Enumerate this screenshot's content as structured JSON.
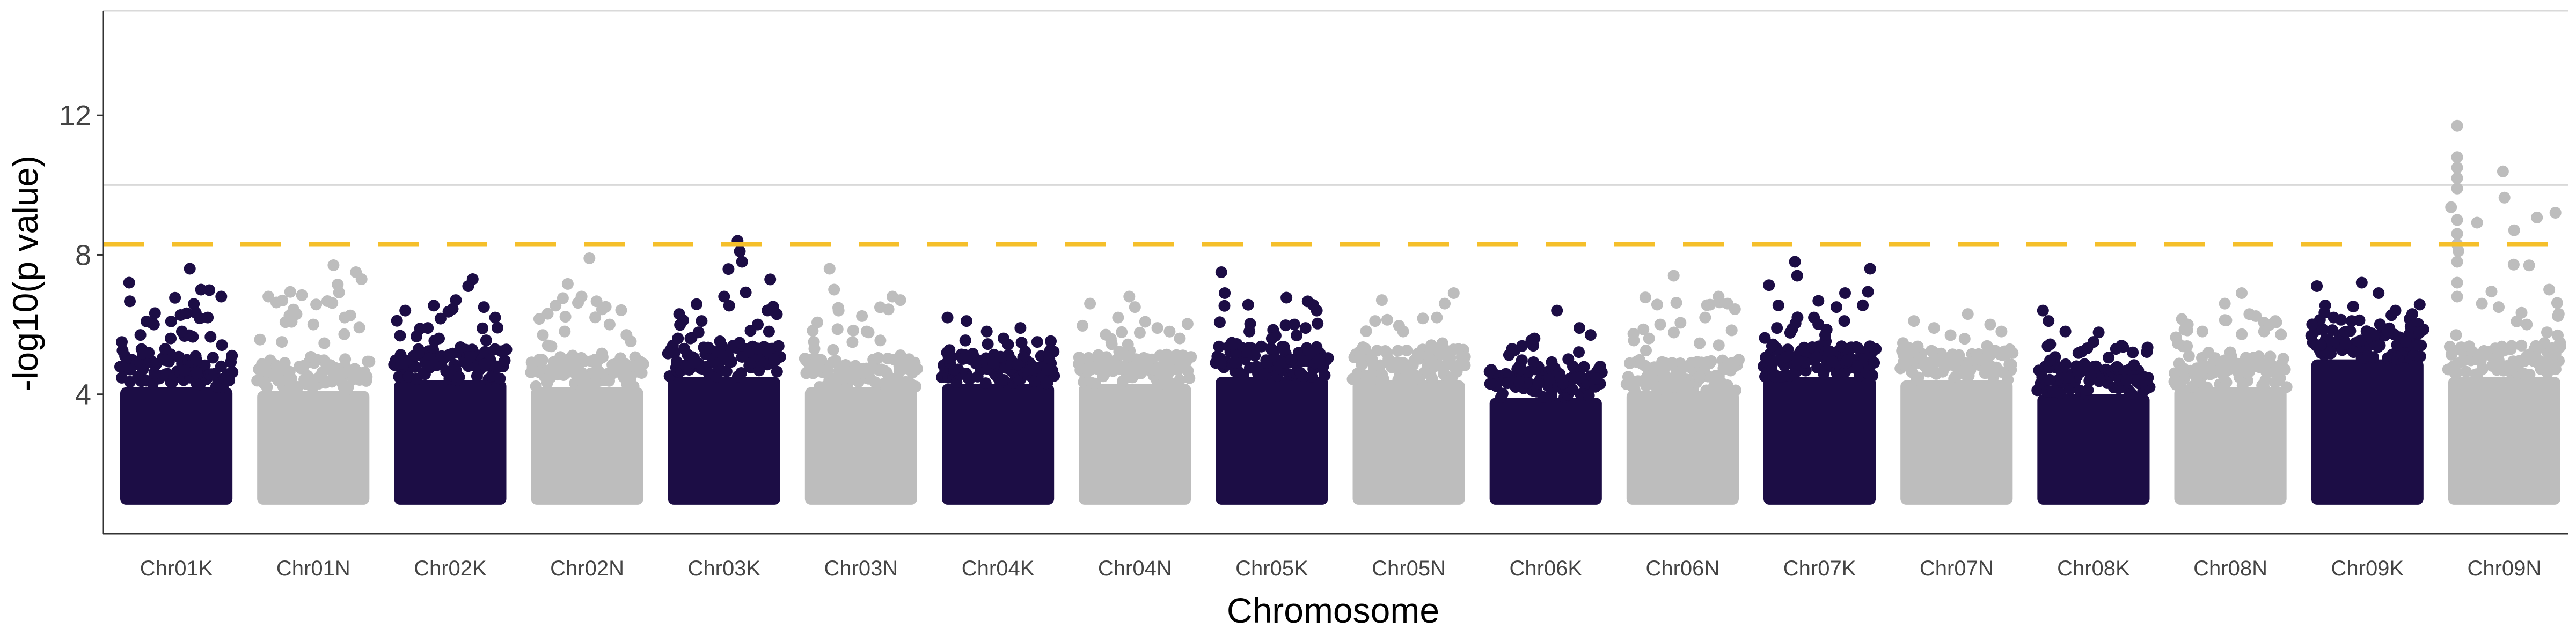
{
  "chart_data": {
    "type": "scatter",
    "subtype": "manhattan",
    "xlabel": "Chromosome",
    "ylabel": "-log10(p value)",
    "ylim": [
      0,
      15
    ],
    "y_ticks": [
      4,
      8,
      12
    ],
    "grid": {
      "major_y": [
        10,
        15
      ],
      "vertical": false
    },
    "significance_threshold": {
      "value": 8.3,
      "style": "dashed",
      "color": "#f5bf2a"
    },
    "colors": {
      "dark": "#1c0d45",
      "light": "#bdbdbd"
    },
    "chromosomes": [
      {
        "name": "Chr01K",
        "color": "dark",
        "bulk_top": 4.6,
        "scatter_max": 7.6,
        "peaks": [
          [
            0.08,
            7.2
          ],
          [
            0.62,
            7.6
          ],
          [
            0.72,
            7.0
          ],
          [
            0.9,
            6.8
          ],
          [
            0.3,
            6.0
          ],
          [
            0.45,
            5.6
          ],
          [
            0.55,
            5.8
          ],
          [
            0.78,
            6.2
          ],
          [
            0.18,
            5.7
          ],
          [
            0.4,
            5.3
          ]
        ]
      },
      {
        "name": "Chr01N",
        "color": "light",
        "bulk_top": 4.5,
        "scatter_max": 7.8,
        "peaks": [
          [
            0.1,
            6.8
          ],
          [
            0.35,
            6.3
          ],
          [
            0.68,
            7.7
          ],
          [
            0.88,
            7.5
          ],
          [
            0.93,
            7.3
          ],
          [
            0.5,
            6.0
          ],
          [
            0.22,
            5.5
          ],
          [
            0.78,
            6.2
          ]
        ]
      },
      {
        "name": "Chr02K",
        "color": "dark",
        "bulk_top": 4.8,
        "scatter_max": 7.3,
        "peaks": [
          [
            0.1,
            6.4
          ],
          [
            0.3,
            5.9
          ],
          [
            0.55,
            6.7
          ],
          [
            0.66,
            7.1
          ],
          [
            0.7,
            7.3
          ],
          [
            0.8,
            6.5
          ],
          [
            0.9,
            6.2
          ],
          [
            0.4,
            5.6
          ]
        ]
      },
      {
        "name": "Chr02N",
        "color": "light",
        "bulk_top": 4.6,
        "scatter_max": 7.9,
        "peaks": [
          [
            0.15,
            5.4
          ],
          [
            0.3,
            5.8
          ],
          [
            0.45,
            6.8
          ],
          [
            0.52,
            7.9
          ],
          [
            0.7,
            6.0
          ],
          [
            0.85,
            5.7
          ]
        ]
      },
      {
        "name": "Chr03K",
        "color": "dark",
        "bulk_top": 4.9,
        "scatter_max": 8.4,
        "peaks": [
          [
            0.1,
            6.3
          ],
          [
            0.3,
            6.1
          ],
          [
            0.5,
            6.8
          ],
          [
            0.62,
            8.4
          ],
          [
            0.64,
            8.1
          ],
          [
            0.66,
            7.8
          ],
          [
            0.8,
            6.0
          ],
          [
            0.9,
            5.8
          ],
          [
            0.2,
            5.6
          ]
        ]
      },
      {
        "name": "Chr03N",
        "color": "light",
        "bulk_top": 4.6,
        "scatter_max": 7.6,
        "peaks": [
          [
            0.08,
            5.5
          ],
          [
            0.22,
            7.6
          ],
          [
            0.26,
            7.0
          ],
          [
            0.3,
            6.4
          ],
          [
            0.55,
            5.8
          ],
          [
            0.78,
            6.8
          ],
          [
            0.85,
            6.7
          ]
        ]
      },
      {
        "name": "Chr04K",
        "color": "dark",
        "bulk_top": 4.7,
        "scatter_max": 6.2,
        "peaks": [
          [
            0.05,
            6.2
          ],
          [
            0.22,
            6.1
          ],
          [
            0.4,
            5.8
          ],
          [
            0.55,
            5.6
          ],
          [
            0.7,
            5.9
          ],
          [
            0.85,
            5.5
          ]
        ]
      },
      {
        "name": "Chr04N",
        "color": "light",
        "bulk_top": 4.7,
        "scatter_max": 6.8,
        "peaks": [
          [
            0.1,
            6.6
          ],
          [
            0.35,
            6.2
          ],
          [
            0.45,
            6.8
          ],
          [
            0.5,
            6.5
          ],
          [
            0.7,
            5.9
          ],
          [
            0.9,
            5.6
          ]
        ]
      },
      {
        "name": "Chr05K",
        "color": "dark",
        "bulk_top": 4.9,
        "scatter_max": 7.5,
        "peaks": [
          [
            0.05,
            7.5
          ],
          [
            0.08,
            6.9
          ],
          [
            0.3,
            5.8
          ],
          [
            0.5,
            5.6
          ],
          [
            0.7,
            6.0
          ],
          [
            0.9,
            6.4
          ],
          [
            0.8,
            5.9
          ]
        ]
      },
      {
        "name": "Chr05N",
        "color": "light",
        "bulk_top": 4.8,
        "scatter_max": 6.9,
        "peaks": [
          [
            0.2,
            6.1
          ],
          [
            0.26,
            6.7
          ],
          [
            0.45,
            5.8
          ],
          [
            0.75,
            6.2
          ],
          [
            0.82,
            6.6
          ],
          [
            0.9,
            6.9
          ]
        ]
      },
      {
        "name": "Chr06K",
        "color": "dark",
        "bulk_top": 4.3,
        "scatter_max": 6.4,
        "peaks": [
          [
            0.2,
            5.3
          ],
          [
            0.4,
            5.6
          ],
          [
            0.6,
            6.4
          ],
          [
            0.8,
            5.9
          ],
          [
            0.9,
            5.7
          ]
        ]
      },
      {
        "name": "Chr06N",
        "color": "light",
        "bulk_top": 4.5,
        "scatter_max": 7.4,
        "peaks": [
          [
            0.2,
            5.6
          ],
          [
            0.3,
            6.0
          ],
          [
            0.42,
            7.4
          ],
          [
            0.7,
            6.2
          ],
          [
            0.82,
            6.8
          ],
          [
            0.9,
            6.6
          ]
        ]
      },
      {
        "name": "Chr07K",
        "color": "dark",
        "bulk_top": 4.9,
        "scatter_max": 7.8,
        "peaks": [
          [
            0.12,
            5.9
          ],
          [
            0.28,
            7.8
          ],
          [
            0.3,
            7.4
          ],
          [
            0.45,
            6.2
          ],
          [
            0.65,
            6.5
          ],
          [
            0.72,
            6.1
          ],
          [
            0.95,
            7.6
          ],
          [
            0.55,
            5.7
          ]
        ]
      },
      {
        "name": "Chr07N",
        "color": "light",
        "bulk_top": 4.8,
        "scatter_max": 6.3,
        "peaks": [
          [
            0.12,
            6.1
          ],
          [
            0.3,
            5.9
          ],
          [
            0.6,
            6.3
          ],
          [
            0.8,
            6.0
          ],
          [
            0.9,
            5.8
          ]
        ]
      },
      {
        "name": "Chr08K",
        "color": "dark",
        "bulk_top": 4.4,
        "scatter_max": 6.4,
        "peaks": [
          [
            0.05,
            6.4
          ],
          [
            0.1,
            6.1
          ],
          [
            0.25,
            5.8
          ],
          [
            0.5,
            5.5
          ],
          [
            0.7,
            5.3
          ],
          [
            0.85,
            5.2
          ]
        ]
      },
      {
        "name": "Chr08N",
        "color": "light",
        "bulk_top": 4.6,
        "scatter_max": 6.9,
        "peaks": [
          [
            0.12,
            6.0
          ],
          [
            0.25,
            5.8
          ],
          [
            0.45,
            6.6
          ],
          [
            0.6,
            6.9
          ],
          [
            0.8,
            5.8
          ],
          [
            0.9,
            6.1
          ]
        ]
      },
      {
        "name": "Chr09K",
        "color": "dark",
        "bulk_top": 5.4,
        "scatter_max": 7.2,
        "peaks": [
          [
            0.05,
            7.1
          ],
          [
            0.2,
            6.2
          ],
          [
            0.45,
            7.2
          ],
          [
            0.6,
            6.9
          ],
          [
            0.75,
            6.4
          ],
          [
            0.9,
            6.3
          ]
        ]
      },
      {
        "name": "Chr09N",
        "color": "light",
        "bulk_top": 4.9,
        "scatter_max": 11.7,
        "peaks": [
          [
            0.08,
            11.7
          ],
          [
            0.08,
            10.8
          ],
          [
            0.08,
            10.5
          ],
          [
            0.08,
            10.2
          ],
          [
            0.08,
            9.9
          ],
          [
            0.08,
            9.0
          ],
          [
            0.08,
            8.6
          ],
          [
            0.08,
            8.3
          ],
          [
            0.08,
            7.8
          ],
          [
            0.08,
            7.2
          ],
          [
            0.08,
            6.8
          ],
          [
            0.3,
            6.6
          ],
          [
            0.45,
            6.5
          ],
          [
            0.7,
            6.0
          ],
          [
            0.9,
            7.0
          ]
        ]
      }
    ]
  }
}
